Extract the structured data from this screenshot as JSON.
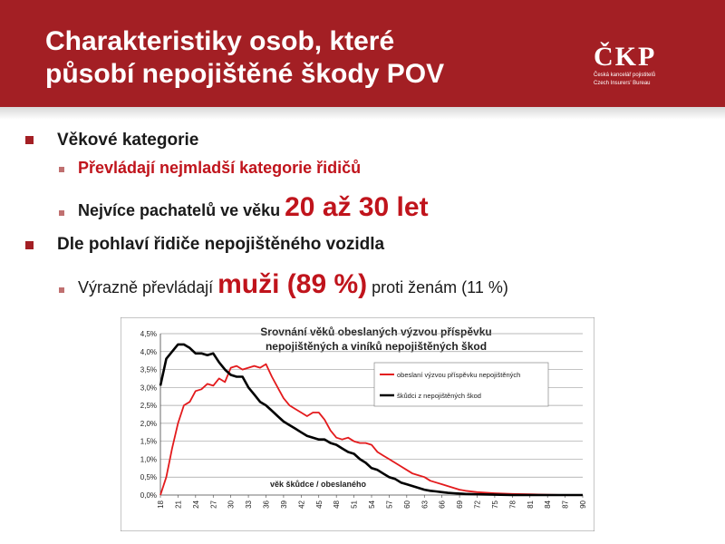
{
  "slide": {
    "title_line1": "Charakteristiky osob, které",
    "title_line2": "působí nepojištěné škody POV",
    "logo_text": "ČKP",
    "logo_sub1": "Česká kancelář pojistitelů",
    "logo_sub2": "Czech Insurers' Bureau"
  },
  "bullets": {
    "b1": "Věkové kategorie",
    "b1_sub1": "Převládají nejmladší kategorie řidičů",
    "b1_sub2_pre": "Nejvíce pachatelů ve věku ",
    "b1_sub2_big": "20 až 30 let",
    "b2": "Dle pohlaví řidiče nepojištěného vozidla",
    "b2_sub1_pre": "Výrazně převládají ",
    "b2_sub1_big": "muži (89 %)",
    "b2_sub1_post": " proti ženám (11 %)"
  },
  "colors": {
    "header": "#a31f24",
    "accent_red": "#c0141c",
    "series_red": "#e31a1c",
    "series_black": "#000000"
  },
  "chart_data": {
    "type": "line",
    "title_line1": "Srovnání věků obeslaných výzvou příspěvku",
    "title_line2": "nepojištěných a viníků nepojištěných škod",
    "xlabel": "věk škůdce / obeslaného",
    "ylabel": "",
    "x_tick_labels": [
      "18",
      "21",
      "24",
      "27",
      "30",
      "33",
      "36",
      "39",
      "42",
      "45",
      "48",
      "51",
      "54",
      "57",
      "60",
      "63",
      "66",
      "69",
      "72",
      "75",
      "78",
      "81",
      "84",
      "87",
      "90"
    ],
    "y_tick_labels": [
      "0,0%",
      "0,5%",
      "1,0%",
      "1,5%",
      "2,0%",
      "2,5%",
      "3,0%",
      "3,5%",
      "4,0%",
      "4,5%"
    ],
    "ylim": [
      0,
      4.5
    ],
    "xlim": [
      18,
      90
    ],
    "legend_position": "right",
    "series": [
      {
        "name": "obeslaní výzvou příspěvku nepojištěných",
        "color": "#e31a1c",
        "x": [
          18,
          19,
          20,
          21,
          22,
          23,
          24,
          25,
          26,
          27,
          28,
          29,
          30,
          31,
          32,
          33,
          34,
          35,
          36,
          37,
          38,
          39,
          40,
          41,
          42,
          43,
          44,
          45,
          46,
          47,
          48,
          49,
          50,
          51,
          52,
          53,
          54,
          55,
          56,
          57,
          58,
          59,
          60,
          61,
          62,
          63,
          64,
          65,
          66,
          67,
          68,
          69,
          70,
          72,
          75,
          78,
          81,
          84,
          87,
          90
        ],
        "values": [
          0.0,
          0.5,
          1.3,
          2.0,
          2.5,
          2.6,
          2.9,
          2.95,
          3.1,
          3.05,
          3.25,
          3.15,
          3.55,
          3.6,
          3.5,
          3.55,
          3.6,
          3.55,
          3.65,
          3.3,
          3.0,
          2.7,
          2.5,
          2.4,
          2.3,
          2.2,
          2.3,
          2.3,
          2.1,
          1.8,
          1.6,
          1.55,
          1.6,
          1.5,
          1.45,
          1.45,
          1.4,
          1.2,
          1.1,
          1.0,
          0.9,
          0.8,
          0.7,
          0.6,
          0.55,
          0.5,
          0.4,
          0.35,
          0.3,
          0.25,
          0.2,
          0.15,
          0.12,
          0.08,
          0.05,
          0.03,
          0.02,
          0.01,
          0.0,
          0.0
        ]
      },
      {
        "name": "škůdci z nepojištěných škod",
        "color": "#000000",
        "x": [
          18,
          19,
          20,
          21,
          22,
          23,
          24,
          25,
          26,
          27,
          28,
          29,
          30,
          31,
          32,
          33,
          34,
          35,
          36,
          37,
          38,
          39,
          40,
          41,
          42,
          43,
          44,
          45,
          46,
          47,
          48,
          49,
          50,
          51,
          52,
          53,
          54,
          55,
          56,
          57,
          58,
          59,
          60,
          61,
          62,
          63,
          64,
          65,
          66,
          67,
          68,
          69,
          70,
          72,
          75,
          78,
          81,
          84,
          87,
          90
        ],
        "values": [
          3.05,
          3.8,
          4.0,
          4.2,
          4.2,
          4.1,
          3.95,
          3.95,
          3.9,
          3.95,
          3.7,
          3.5,
          3.35,
          3.3,
          3.3,
          3.0,
          2.8,
          2.6,
          2.5,
          2.35,
          2.2,
          2.05,
          1.95,
          1.85,
          1.75,
          1.65,
          1.6,
          1.55,
          1.55,
          1.45,
          1.4,
          1.3,
          1.2,
          1.15,
          1.0,
          0.9,
          0.75,
          0.7,
          0.6,
          0.5,
          0.45,
          0.35,
          0.3,
          0.25,
          0.2,
          0.15,
          0.12,
          0.1,
          0.08,
          0.06,
          0.05,
          0.04,
          0.03,
          0.02,
          0.01,
          0.0,
          0.0,
          0.0,
          0.0,
          0.0
        ]
      }
    ]
  }
}
